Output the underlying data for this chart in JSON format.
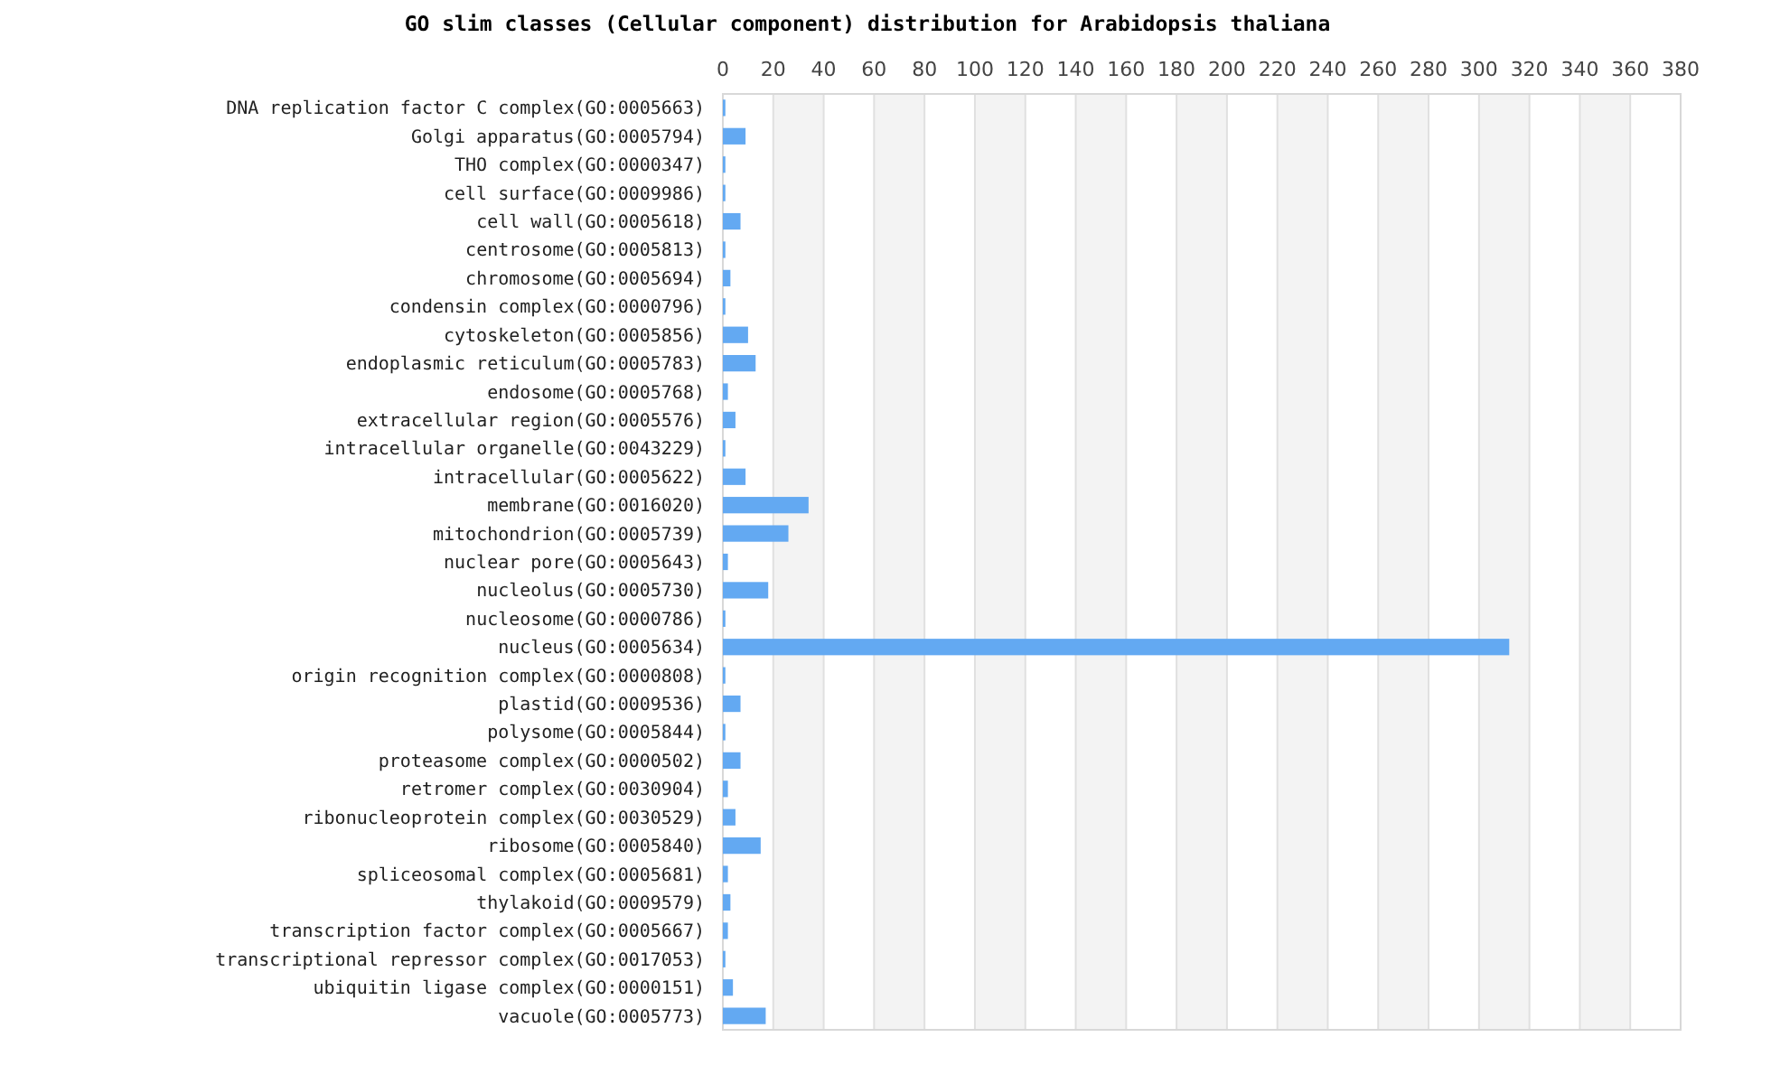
{
  "chart_data": {
    "type": "bar",
    "orientation": "horizontal",
    "title": "GO slim classes (Cellular component) distribution for Arabidopsis thaliana",
    "categories": [
      "DNA replication factor C complex(GO:0005663)",
      "Golgi apparatus(GO:0005794)",
      "THO complex(GO:0000347)",
      "cell surface(GO:0009986)",
      "cell wall(GO:0005618)",
      "centrosome(GO:0005813)",
      "chromosome(GO:0005694)",
      "condensin complex(GO:0000796)",
      "cytoskeleton(GO:0005856)",
      "endoplasmic reticulum(GO:0005783)",
      "endosome(GO:0005768)",
      "extracellular region(GO:0005576)",
      "intracellular organelle(GO:0043229)",
      "intracellular(GO:0005622)",
      "membrane(GO:0016020)",
      "mitochondrion(GO:0005739)",
      "nuclear pore(GO:0005643)",
      "nucleolus(GO:0005730)",
      "nucleosome(GO:0000786)",
      "nucleus(GO:0005634)",
      "origin recognition complex(GO:0000808)",
      "plastid(GO:0009536)",
      "polysome(GO:0005844)",
      "proteasome complex(GO:0000502)",
      "retromer complex(GO:0030904)",
      "ribonucleoprotein complex(GO:0030529)",
      "ribosome(GO:0005840)",
      "spliceosomal complex(GO:0005681)",
      "thylakoid(GO:0009579)",
      "transcription factor complex(GO:0005667)",
      "transcriptional repressor complex(GO:0017053)",
      "ubiquitin ligase complex(GO:0000151)",
      "vacuole(GO:0005773)"
    ],
    "values": [
      1,
      9,
      1,
      1,
      7,
      1,
      3,
      1,
      10,
      13,
      2,
      5,
      1,
      9,
      34,
      26,
      2,
      18,
      1,
      312,
      1,
      7,
      1,
      7,
      2,
      5,
      15,
      2,
      3,
      2,
      1,
      4,
      17
    ],
    "color": "#63a9f2",
    "xlim": [
      0,
      380
    ],
    "xticks": [
      0,
      20,
      40,
      60,
      80,
      100,
      120,
      140,
      160,
      180,
      200,
      220,
      240,
      260,
      280,
      300,
      320,
      340,
      360,
      380
    ],
    "grid": "x"
  }
}
